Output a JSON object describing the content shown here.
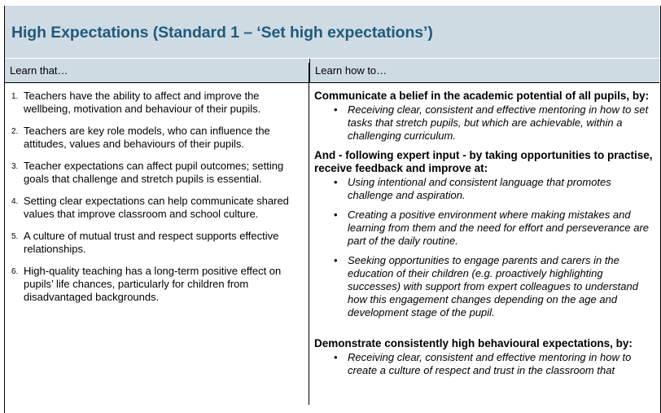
{
  "title": "High Expectations (Standard 1 – ‘Set high expectations’)",
  "colors": {
    "header_bg": "#cfdbe3",
    "title_text": "#1f5a7e"
  },
  "columns": {
    "left": "Learn that…",
    "right": "Learn how to…"
  },
  "learn_that": [
    {
      "num": "1.",
      "text": "Teachers have the ability to affect and improve the wellbeing, motivation and behaviour of their pupils."
    },
    {
      "num": "2.",
      "text": "Teachers are key role models, who can influence the attitudes, values and behaviours of their pupils."
    },
    {
      "num": "3.",
      "text": "Teacher expectations can affect pupil outcomes; setting goals that challenge and stretch pupils is essential."
    },
    {
      "num": "4.",
      "text": "Setting clear expectations can help communicate shared values that improve classroom and school culture."
    },
    {
      "num": "5.",
      "text": "A culture of mutual trust and respect supports effective relationships."
    },
    {
      "num": "6.",
      "text": "High-quality teaching has a long-term positive effect on pupils’ life chances, particularly for children from disadvantaged backgrounds."
    }
  ],
  "learn_how": [
    {
      "heading": "Communicate a belief in the academic potential of all pupils, by:",
      "bullets": [
        "Receiving clear, consistent and effective mentoring in how to set tasks that stretch pupils, but which are achievable, within a challenging curriculum."
      ]
    },
    {
      "heading": "And - following expert input - by taking opportunities to practise, receive feedback and improve at:",
      "bullets": [
        "Using intentional and consistent language that promotes challenge and aspiration.",
        "Creating a positive environment where making mistakes and learning from them and the need for effort and perseverance are part of the daily routine.",
        "Seeking opportunities to engage parents and carers in the education of their children (e.g. proactively highlighting successes) with support from expert colleagues to understand how this engagement changes depending on the age and development stage of the pupil."
      ]
    },
    {
      "heading": "Demonstrate consistently high behavioural expectations, by:",
      "bullets": [
        "Receiving clear, consistent and effective mentoring in how to create a culture of respect and trust in the classroom that"
      ]
    }
  ]
}
